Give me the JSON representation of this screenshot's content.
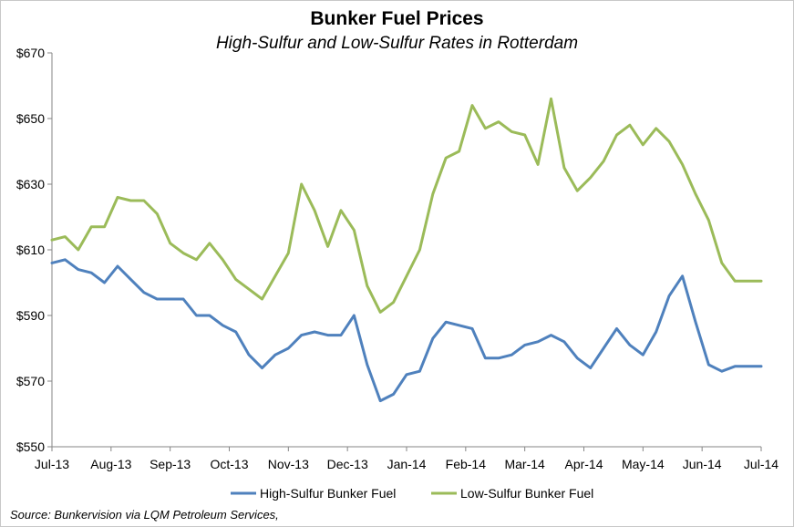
{
  "chart_data": {
    "type": "line",
    "title": "Bunker Fuel Prices",
    "subtitle": "High-Sulfur and Low-Sulfur Rates in Rotterdam",
    "source": "Source: Bunkervision via LQM Petroleum Services,",
    "ylim": [
      550,
      670
    ],
    "yticks": [
      550,
      570,
      590,
      610,
      630,
      650,
      670
    ],
    "ytick_labels": [
      "$550",
      "$570",
      "$590",
      "$610",
      "$630",
      "$650",
      "$670"
    ],
    "x_tick_labels": [
      "Jul-13",
      "Aug-13",
      "Sep-13",
      "Oct-13",
      "Nov-13",
      "Dec-13",
      "Jan-14",
      "Feb-14",
      "Mar-14",
      "Apr-14",
      "May-14",
      "Jun-14",
      "Jul-14"
    ],
    "x_tick_positions": [
      0,
      4.5,
      9,
      13.5,
      18,
      22.5,
      27,
      31.5,
      36,
      40.5,
      45,
      49.5,
      54
    ],
    "x_max": 54,
    "grid": false,
    "legend_position": "bottom",
    "series": [
      {
        "name": "High-Sulfur Bunker Fuel",
        "color": "#4f81bd",
        "x": [
          0,
          1,
          2,
          3,
          4,
          5,
          6,
          7,
          8,
          9,
          10,
          11,
          12,
          13,
          14,
          15,
          16,
          17,
          18,
          19,
          20,
          21,
          22,
          23,
          24,
          25,
          26,
          27,
          28,
          29,
          30,
          31,
          32,
          33,
          34,
          35,
          36,
          37,
          38,
          39,
          40,
          41,
          42,
          43,
          44,
          45,
          46,
          47,
          48,
          49,
          50,
          51,
          52,
          53,
          54
        ],
        "values": [
          606,
          607,
          604,
          603,
          600,
          605,
          601,
          597,
          595,
          595,
          595,
          590,
          590,
          587,
          585,
          578,
          574,
          578,
          580,
          584,
          585,
          584,
          584,
          590,
          575,
          564,
          566,
          572,
          573,
          583,
          588,
          587,
          586,
          577,
          577,
          578,
          581,
          582,
          584,
          582,
          577,
          574,
          580,
          586,
          581,
          578,
          585,
          596,
          602,
          588,
          575,
          573,
          574.5,
          574.5,
          574.5
        ]
      },
      {
        "name": "Low-Sulfur Bunker Fuel",
        "color": "#9bbb59",
        "x": [
          0,
          1,
          2,
          3,
          4,
          5,
          6,
          7,
          8,
          9,
          10,
          11,
          12,
          13,
          14,
          15,
          16,
          17,
          18,
          19,
          20,
          21,
          22,
          23,
          24,
          25,
          26,
          27,
          28,
          29,
          30,
          31,
          32,
          33,
          34,
          35,
          36,
          37,
          38,
          39,
          40,
          41,
          42,
          43,
          44,
          45,
          46,
          47,
          48,
          49,
          50,
          51,
          52,
          53,
          54
        ],
        "values": [
          613,
          614,
          610,
          617,
          617,
          626,
          625,
          625,
          621,
          612,
          609,
          607,
          612,
          607,
          601,
          598,
          595,
          602,
          609,
          630,
          622,
          611,
          622,
          616,
          599,
          591,
          594,
          602,
          610,
          627,
          638,
          640,
          654,
          647,
          649,
          646,
          645,
          636,
          656,
          635,
          628,
          632,
          637,
          645,
          648,
          642,
          647,
          643,
          636,
          627,
          619,
          606,
          600.5,
          600.5,
          600.5
        ]
      }
    ]
  }
}
